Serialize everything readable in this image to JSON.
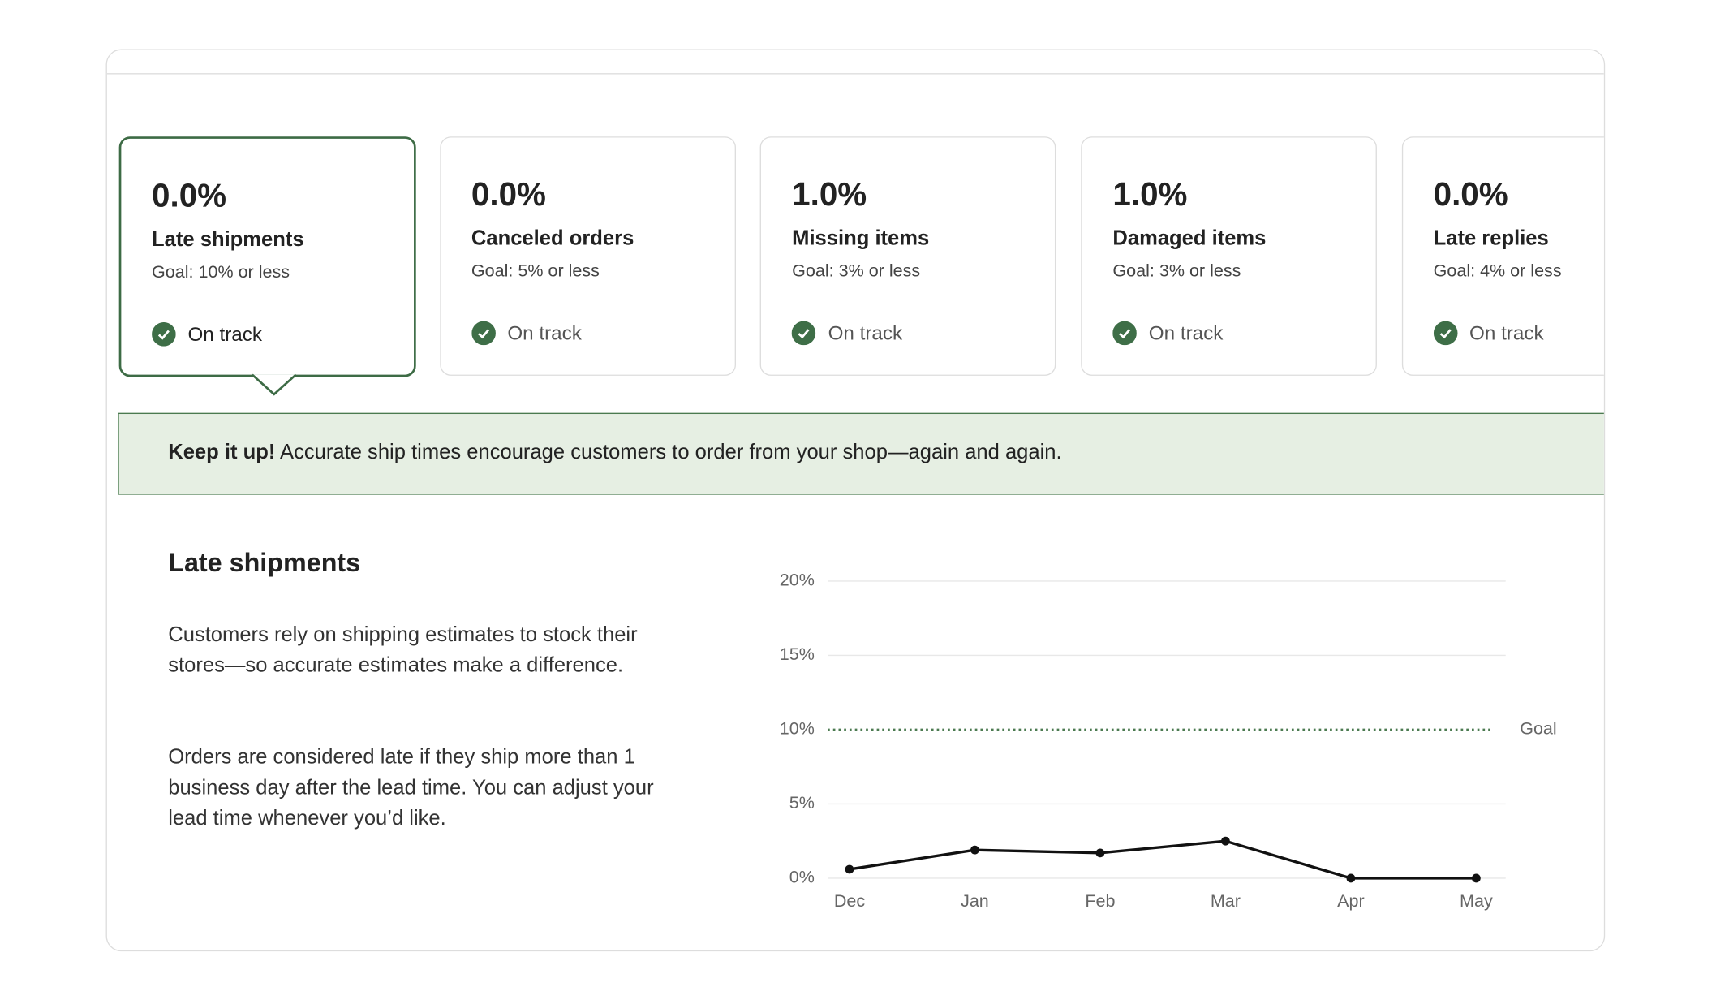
{
  "cards": [
    {
      "value": "0.0%",
      "label": "Late shipments",
      "goal": "Goal: 10% or less",
      "status": "On track"
    },
    {
      "value": "0.0%",
      "label": "Canceled orders",
      "goal": "Goal: 5% or less",
      "status": "On track"
    },
    {
      "value": "1.0%",
      "label": "Missing items",
      "goal": "Goal: 3% or less",
      "status": "On track"
    },
    {
      "value": "1.0%",
      "label": "Damaged items",
      "goal": "Goal: 3% or less",
      "status": "On track"
    },
    {
      "value": "0.0%",
      "label": "Late replies",
      "goal": "Goal: 4% or less",
      "status": "On track"
    }
  ],
  "banner": {
    "strong": "Keep it up!",
    "text": "Accurate ship times encourage customers to order from your shop—again and again."
  },
  "detail": {
    "title": "Late shipments",
    "paragraphs": [
      "Customers rely on shipping estimates to stock their stores—so accurate estimates make a difference.",
      "Orders are considered late if they ship more than 1 business day after the lead time. You can adjust your lead time whenever you’d like."
    ]
  },
  "chart_data": {
    "type": "line",
    "categories": [
      "Dec",
      "Jan",
      "Feb",
      "Mar",
      "Apr",
      "May"
    ],
    "values": [
      0.6,
      1.9,
      1.7,
      2.5,
      0,
      0
    ],
    "color": "#111111",
    "ylim": [
      0,
      20
    ],
    "yticks": [
      {
        "value": 0,
        "label": "0%"
      },
      {
        "value": 5,
        "label": "5%"
      },
      {
        "value": 10,
        "label": "10%"
      },
      {
        "value": 15,
        "label": "15%"
      },
      {
        "value": 20,
        "label": "20%"
      }
    ],
    "goal": {
      "value": 10,
      "label": "Goal"
    },
    "grid": true
  }
}
